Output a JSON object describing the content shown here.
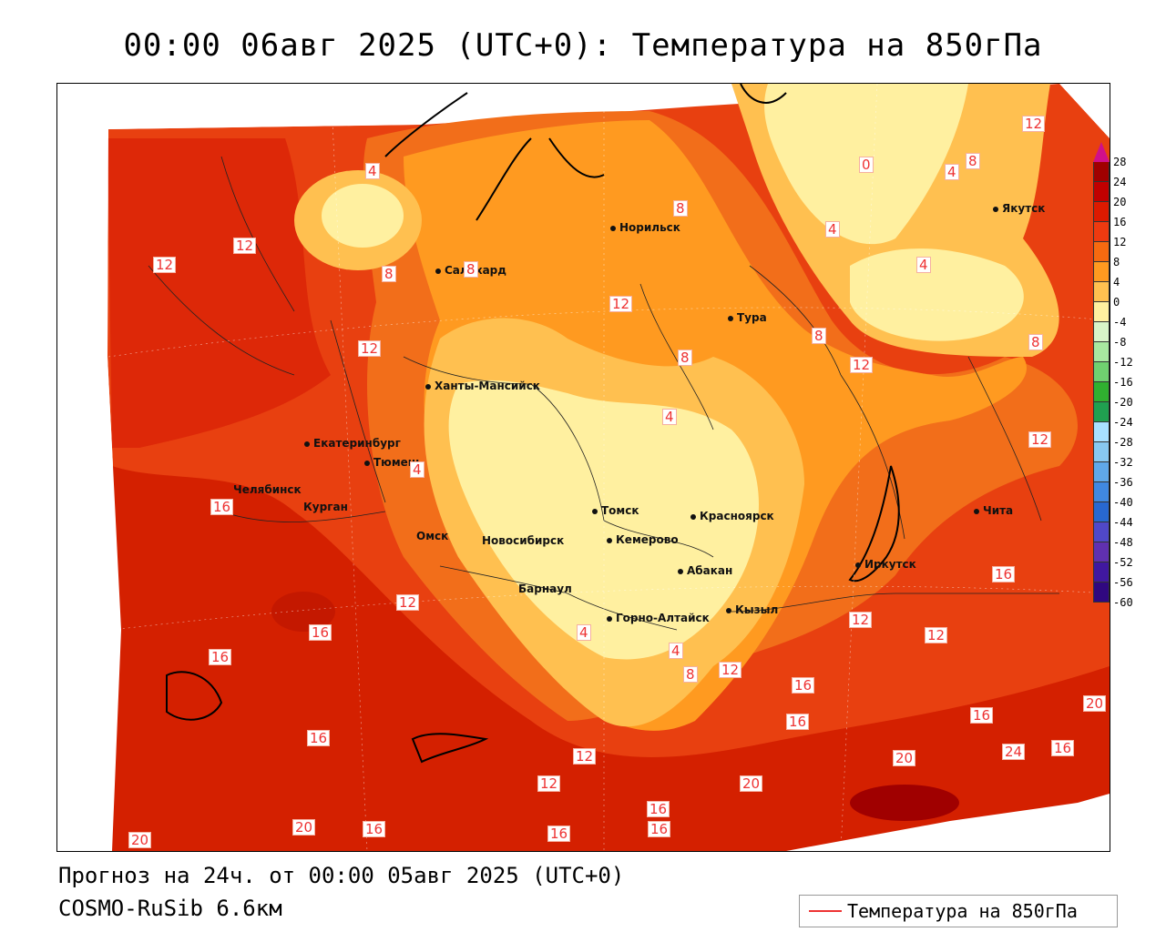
{
  "title": "00:00 06авг 2025 (UTC+0): Температура на 850гПа",
  "footer": {
    "forecast": "Прогноз на 24ч. от 00:00 05авг 2025 (UTC+0)",
    "model": "COSMO-RuSib 6.6км"
  },
  "legend": {
    "label": "Температура на 850гПа",
    "line_color": "#e33333"
  },
  "colorbar": {
    "ticks": [
      "28",
      "24",
      "20",
      "16",
      "12",
      "8",
      "4",
      "0",
      "-4",
      "-8",
      "-12",
      "-16",
      "-20",
      "-24",
      "-28",
      "-32",
      "-36",
      "-40",
      "-44",
      "-48",
      "-52",
      "-56",
      "-60"
    ],
    "colors": [
      "#a00000",
      "#c00000",
      "#dd1a00",
      "#ee3a10",
      "#f66a10",
      "#ff9a20",
      "#ffc050",
      "#fff0a0",
      "#d8f4c8",
      "#a8e8a0",
      "#70d070",
      "#30b030",
      "#20a050",
      "#a8e0ff",
      "#88c8f0",
      "#60a8e8",
      "#4088e0",
      "#2868d0",
      "#5048c8",
      "#6030b0",
      "#4018a0",
      "#300880"
    ]
  },
  "cities": [
    {
      "name": "Норильск"
    },
    {
      "name": "Якутск"
    },
    {
      "name": "Салехард"
    },
    {
      "name": "Тура"
    },
    {
      "name": "Ханты-Мансийск"
    },
    {
      "name": "Екатеринбург"
    },
    {
      "name": "Тюмень"
    },
    {
      "name": "Челябинск"
    },
    {
      "name": "Курган"
    },
    {
      "name": "Омск"
    },
    {
      "name": "Томск"
    },
    {
      "name": "Красноярск"
    },
    {
      "name": "Новосибирск"
    },
    {
      "name": "Кемерово"
    },
    {
      "name": "Абакан"
    },
    {
      "name": "Барнаул"
    },
    {
      "name": "Иркутск"
    },
    {
      "name": "Чита"
    },
    {
      "name": "Горно-Алтайск"
    },
    {
      "name": "Кызыл"
    }
  ],
  "isolines": [
    "12",
    "12",
    "12",
    "4",
    "8",
    "8",
    "8",
    "12",
    "8",
    "0",
    "4",
    "8",
    "4",
    "4",
    "12",
    "8",
    "8",
    "12",
    "12",
    "4",
    "4",
    "12",
    "16",
    "4",
    "16",
    "16",
    "12",
    "16",
    "12",
    "12",
    "4",
    "8",
    "12",
    "12",
    "16",
    "16",
    "16",
    "20",
    "16",
    "12",
    "24",
    "20",
    "12",
    "16",
    "20",
    "16",
    "16",
    "20",
    "16",
    "20",
    "16"
  ]
}
